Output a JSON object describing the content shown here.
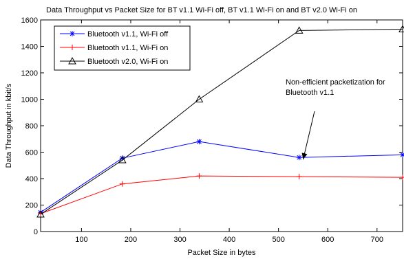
{
  "chart_data": {
    "type": "line",
    "title": "Data Throughput vs Packet Size for BT v1.1 Wi-Fi off, BT v1.1 Wi-Fi on and BT v2.0 Wi-Fi on",
    "xlabel": "Packet Size in bytes",
    "ylabel": "Data Throughput in kbit/s",
    "xlim": [
      17,
      752
    ],
    "ylim": [
      0,
      1600
    ],
    "xticks": [
      100,
      200,
      300,
      400,
      500,
      600,
      700
    ],
    "yticks": [
      0,
      200,
      400,
      600,
      800,
      1000,
      1200,
      1400,
      1600
    ],
    "grid": false,
    "legend_position": "top-left",
    "series": [
      {
        "name": "Bluetooth v1.1, Wi-Fi off",
        "color": "#0000ff",
        "marker": "asterisk",
        "x": [
          17,
          183,
          339,
          542,
          752
        ],
        "y": [
          145,
          555,
          680,
          560,
          580
        ]
      },
      {
        "name": "Bluetooth v1.1, Wi-Fi on",
        "color": "#ff0000",
        "marker": "plus",
        "x": [
          17,
          183,
          339,
          542,
          752
        ],
        "y": [
          135,
          360,
          420,
          415,
          410
        ]
      },
      {
        "name": "Bluetooth v2.0, Wi-Fi on",
        "color": "#000000",
        "marker": "triangle",
        "x": [
          17,
          183,
          339,
          542,
          752
        ],
        "y": [
          130,
          540,
          1000,
          1520,
          1530
        ]
      }
    ],
    "annotation": {
      "lines": [
        "Non-efficient packetization for",
        "Bluetooth v1.1"
      ],
      "arrow_to": {
        "x": 550,
        "y": 545
      }
    }
  }
}
